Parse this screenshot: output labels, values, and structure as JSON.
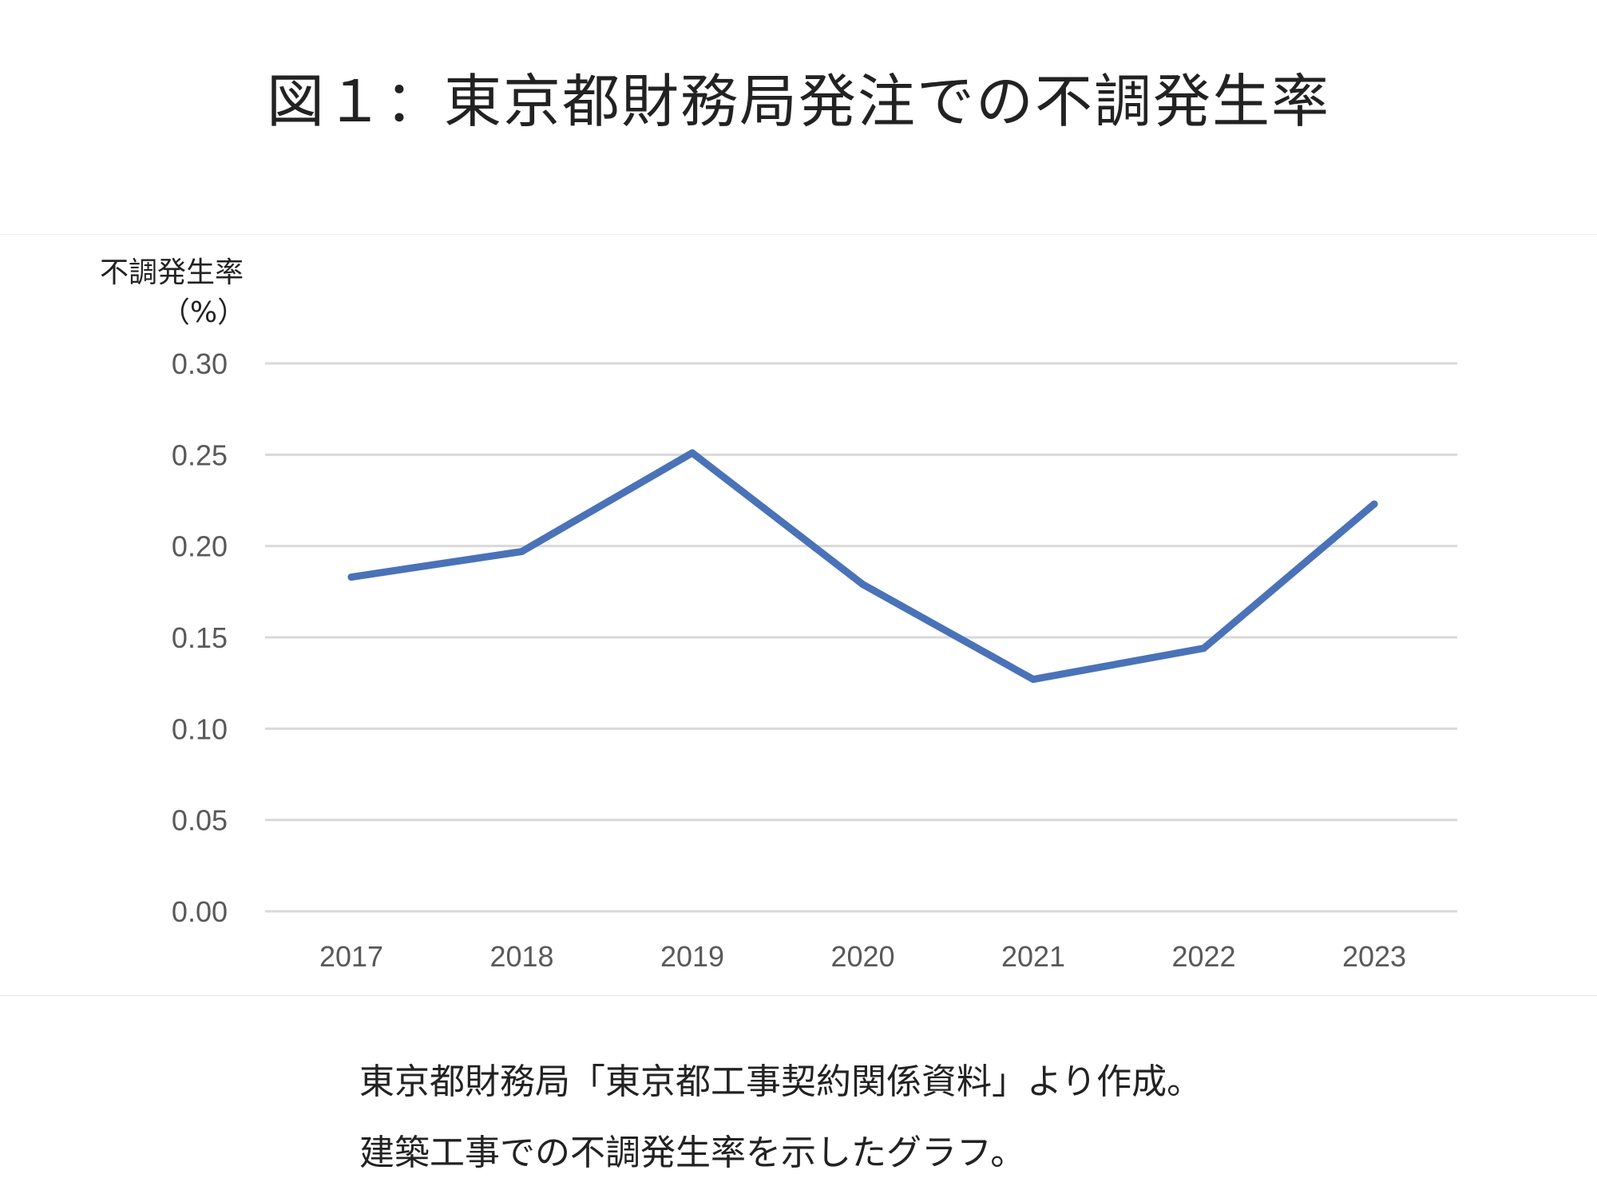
{
  "title": "図１：東京都財務局発注での不調発生率",
  "captions": [
    "東京都財務局「東京都工事契約関係資料」より作成。",
    "建築工事での不調発生率を示したグラフ。"
  ],
  "colors": {
    "line": "#4a72b8",
    "grid": "#d9d9d9",
    "tick_text": "#595959"
  },
  "chart_data": {
    "type": "line",
    "ylabel": "不調発生率",
    "ylabel_unit": "（%）",
    "xlabel": "",
    "ylim": [
      0,
      0.3
    ],
    "yticks": [
      "0.00",
      "0.05",
      "0.10",
      "0.15",
      "0.20",
      "0.25",
      "0.30"
    ],
    "categories": [
      "2017",
      "2018",
      "2019",
      "2020",
      "2021",
      "2022",
      "2023"
    ],
    "series": [
      {
        "values": [
          0.183,
          0.197,
          0.251,
          0.179,
          0.127,
          0.144,
          0.223
        ]
      }
    ],
    "grid": true,
    "legend": "none"
  }
}
